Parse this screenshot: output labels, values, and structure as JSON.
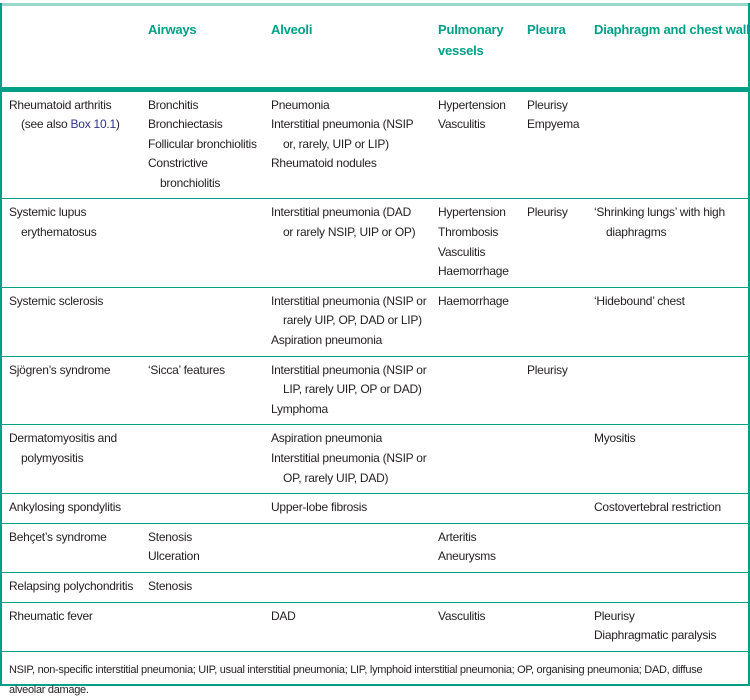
{
  "colors": {
    "accent": "#00a088",
    "link": "#2e3192"
  },
  "headers": [
    "",
    "Airways",
    "Alveoli",
    "Pulmonary vessels",
    "Pleura",
    "Diaphragm and chest wall"
  ],
  "rows": [
    {
      "cells": [
        [
          [
            "Rheumatoid arthritis",
            "(see also |Box 10.1|)"
          ]
        ],
        [
          [
            "Bronchitis"
          ],
          [
            "Bronchiectasis"
          ],
          [
            "Follicular bronchiolitis"
          ],
          [
            "Constrictive",
            "bronchiolitis"
          ]
        ],
        [
          [
            "Pneumonia"
          ],
          [
            "Interstitial pneumonia (NSIP",
            "or, rarely, UIP or LIP)"
          ],
          [
            "Rheumatoid nodules"
          ]
        ],
        [
          [
            "Hypertension"
          ],
          [
            "Vasculitis"
          ]
        ],
        [
          [
            "Pleurisy"
          ],
          [
            "Empyema"
          ]
        ],
        []
      ]
    },
    {
      "cells": [
        [
          [
            "Systemic lupus",
            "erythematosus"
          ]
        ],
        [],
        [
          [
            "Interstitial pneumonia (DAD",
            "or rarely NSIP, UIP or OP)"
          ]
        ],
        [
          [
            "Hypertension"
          ],
          [
            "Thrombosis"
          ],
          [
            "Vasculitis"
          ],
          [
            "Haemorrhage"
          ]
        ],
        [
          [
            "Pleurisy"
          ]
        ],
        [
          [
            "‘Shrinking lungs’ with high",
            "diaphragms"
          ]
        ]
      ]
    },
    {
      "cells": [
        [
          [
            "Systemic sclerosis"
          ]
        ],
        [],
        [
          [
            "Interstitial pneumonia (NSIP or",
            "rarely UIP, OP, DAD or LIP)"
          ],
          [
            "Aspiration pneumonia"
          ]
        ],
        [
          [
            "Haemorrhage"
          ]
        ],
        [],
        [
          [
            "‘Hidebound’ chest"
          ]
        ]
      ]
    },
    {
      "cells": [
        [
          [
            "Sjögren’s syndrome"
          ]
        ],
        [
          [
            "‘Sicca’ features"
          ]
        ],
        [
          [
            "Interstitial pneumonia (NSIP or",
            "LIP, rarely UIP, OP or DAD)"
          ],
          [
            "Lymphoma"
          ]
        ],
        [],
        [
          [
            "Pleurisy"
          ]
        ],
        []
      ]
    },
    {
      "cells": [
        [
          [
            "Dermatomyositis and",
            "polymyositis"
          ]
        ],
        [],
        [
          [
            "Aspiration pneumonia"
          ],
          [
            "Interstitial pneumonia (NSIP or",
            "OP, rarely UIP, DAD)"
          ]
        ],
        [],
        [],
        [
          [
            "Myositis"
          ]
        ]
      ]
    },
    {
      "cells": [
        [
          [
            "Ankylosing spondylitis"
          ]
        ],
        [],
        [
          [
            "Upper-lobe fibrosis"
          ]
        ],
        [],
        [],
        [
          [
            "Costovertebral restriction"
          ]
        ]
      ]
    },
    {
      "cells": [
        [
          [
            "Behçet’s syndrome"
          ]
        ],
        [
          [
            "Stenosis"
          ],
          [
            "Ulceration"
          ]
        ],
        [],
        [
          [
            "Arteritis"
          ],
          [
            "Aneurysms"
          ]
        ],
        [],
        []
      ]
    },
    {
      "cells": [
        [
          [
            "Relapsing polychondritis"
          ]
        ],
        [
          [
            "Stenosis"
          ]
        ],
        [],
        [],
        [],
        []
      ]
    },
    {
      "cells": [
        [
          [
            "Rheumatic fever"
          ]
        ],
        [],
        [
          [
            "DAD"
          ]
        ],
        [
          [
            "Vasculitis"
          ]
        ],
        [],
        [
          [
            "Pleurisy"
          ],
          [
            "Diaphragmatic paralysis"
          ]
        ]
      ]
    }
  ],
  "footnote": "NSIP, non-specific interstitial pneumonia; UIP, usual interstitial pneumonia; LIP, lymphoid interstitial pneumonia; OP, organising pneumonia; DAD, diffuse alveolar damage."
}
